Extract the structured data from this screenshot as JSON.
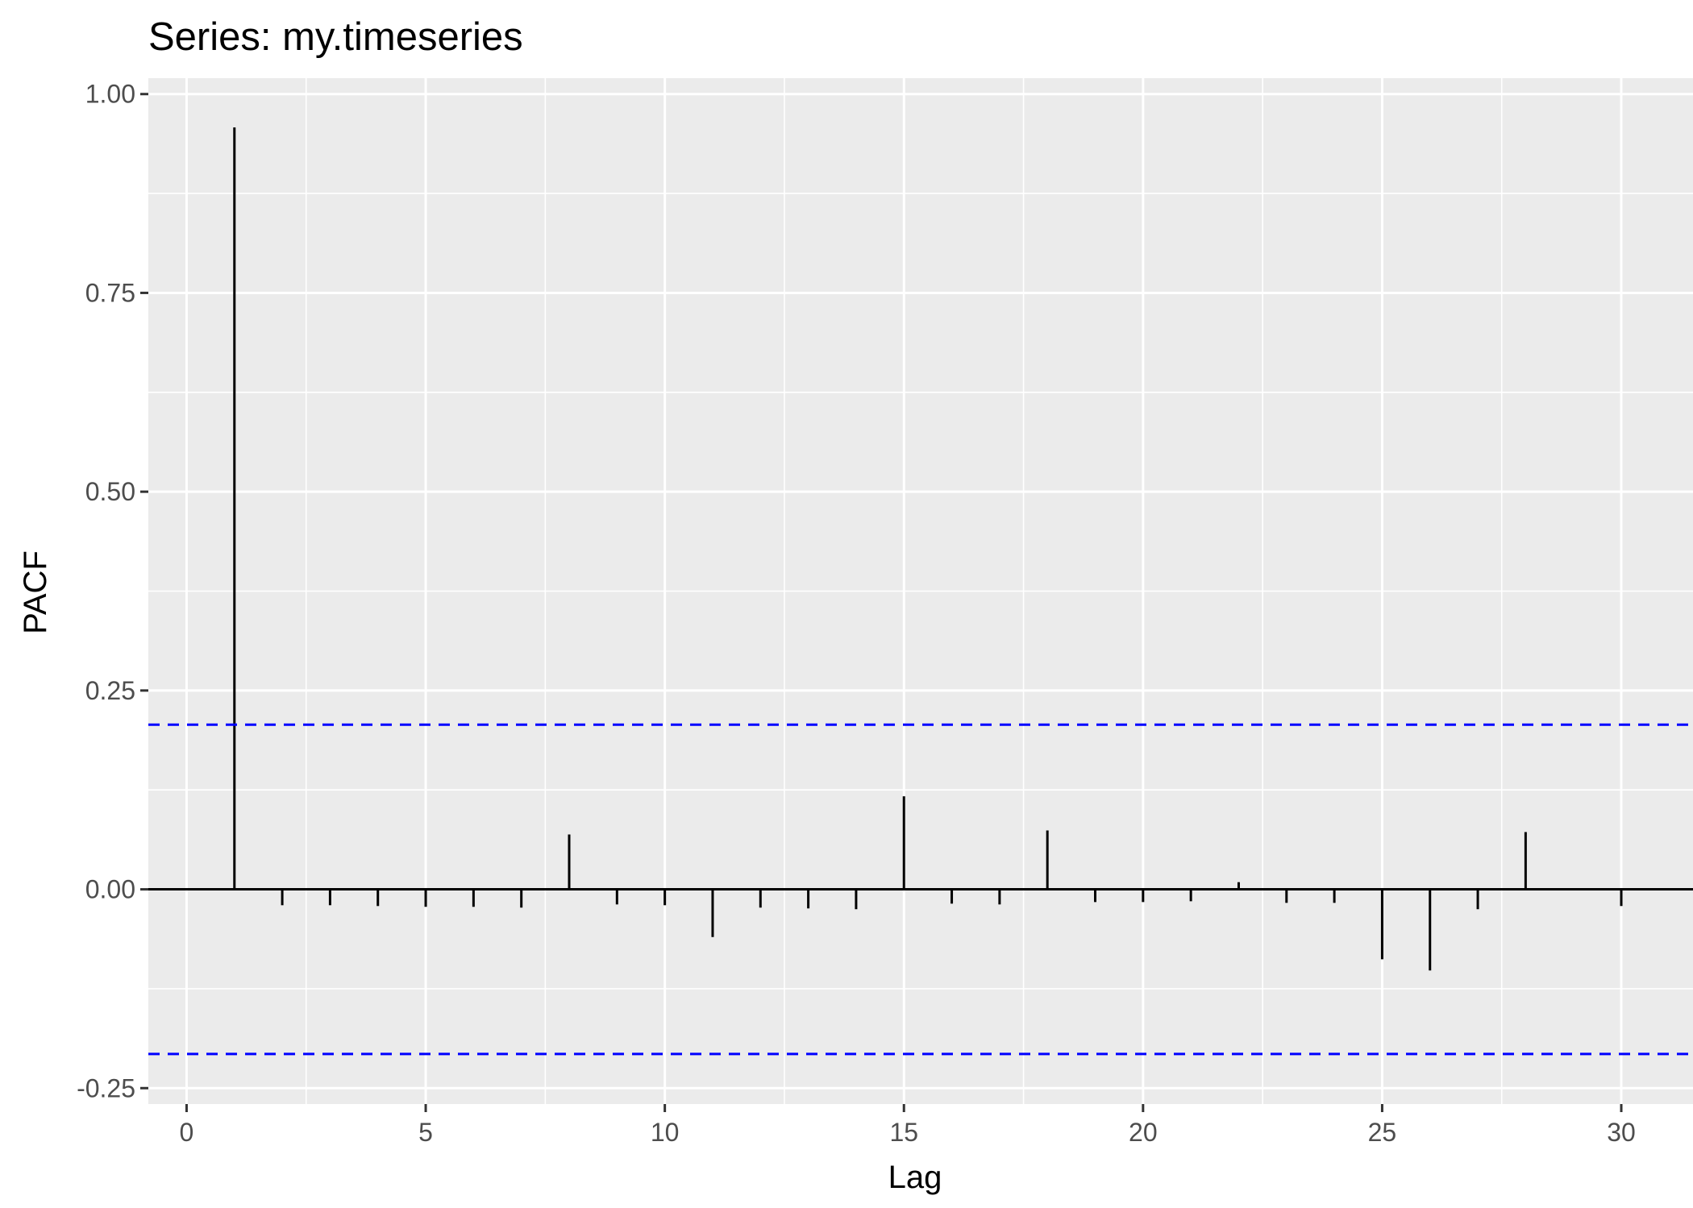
{
  "chart_data": {
    "type": "bar",
    "title": "Series: my.timeseries",
    "xlabel": "Lag",
    "ylabel": "PACF",
    "xlim": [
      -0.8,
      31.5
    ],
    "ylim": [
      -0.27,
      1.02
    ],
    "x_ticks": [
      0,
      5,
      10,
      15,
      20,
      25,
      30
    ],
    "x_tick_labels": [
      "0",
      "5",
      "10",
      "15",
      "20",
      "25",
      "30"
    ],
    "y_ticks": [
      -0.25,
      0,
      0.25,
      0.5,
      0.75,
      1.0
    ],
    "y_tick_labels": [
      "-0.25",
      "0.00",
      "0.25",
      "0.50",
      "0.75",
      "1.00"
    ],
    "grid": true,
    "confidence_bounds": [
      0.207,
      -0.207
    ],
    "lags": [
      1,
      2,
      3,
      4,
      5,
      6,
      7,
      8,
      9,
      10,
      11,
      12,
      13,
      14,
      15,
      16,
      17,
      18,
      19,
      20,
      21,
      22,
      23,
      24,
      25,
      26,
      27,
      28,
      29,
      30
    ],
    "values": [
      0.958,
      -0.02,
      -0.02,
      -0.021,
      -0.022,
      -0.022,
      -0.023,
      0.069,
      -0.019,
      -0.02,
      -0.06,
      -0.023,
      -0.024,
      -0.025,
      0.117,
      -0.018,
      -0.019,
      0.074,
      -0.016,
      -0.016,
      -0.015,
      0.009,
      -0.017,
      -0.017,
      -0.088,
      -0.102,
      -0.025,
      0.072,
      0.0,
      -0.021
    ],
    "colors": {
      "panel_background": "#ebebeb",
      "gridline": "#ffffff",
      "bar": "#000000",
      "bound_line": "#0000ff",
      "tick_label": "#4d4d4d"
    }
  }
}
